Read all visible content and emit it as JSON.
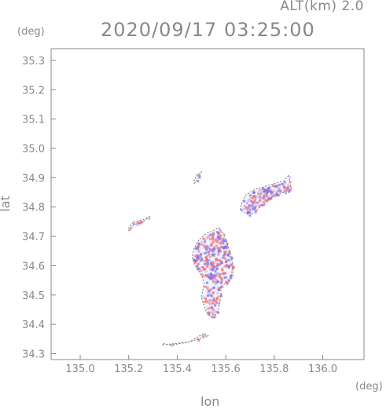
{
  "header": {
    "alt_label": "ALT(km)  2.0",
    "time_label": "2020/09/17 03:25:00"
  },
  "axes": {
    "y_unit": "(deg)",
    "x_unit": "(deg)",
    "x_title": "lon",
    "y_title": "lat",
    "x_ticks": [
      "135.0",
      "135.2",
      "135.4",
      "135.6",
      "135.8",
      "136.0"
    ],
    "y_ticks": [
      "34.3",
      "34.4",
      "34.5",
      "34.6",
      "34.7",
      "34.8",
      "34.9",
      "35.0",
      "35.1",
      "35.2",
      "35.3"
    ]
  },
  "map_data": {
    "lon_range": [
      134.88,
      136.17
    ],
    "lat_range": [
      34.28,
      35.34
    ],
    "colors": {
      "positive": "#f07070",
      "negative": "#7070f0",
      "outline": "#666666"
    },
    "regions": [
      {
        "name": "",
        "lon": [
          135.58,
          135.62,
          135.63,
          135.62,
          135.6,
          135.59,
          135.57,
          135.55,
          135.52,
          135.49,
          135.47,
          135.46,
          135.47,
          135.48,
          135.5,
          135.51,
          135.5,
          135.52,
          135.55,
          135.57,
          135.58
        ],
        "lat": [
          34.53,
          34.55,
          34.6,
          34.64,
          34.69,
          34.71,
          34.73,
          34.72,
          34.71,
          34.69,
          34.66,
          34.63,
          34.61,
          34.59,
          34.57,
          34.54,
          34.49,
          34.44,
          34.42,
          34.45,
          34.5
        ]
      },
      {
        "name": "",
        "lon": [
          135.66,
          135.68,
          135.72,
          135.76,
          135.8,
          135.84,
          135.86,
          135.87,
          135.84,
          135.8,
          135.77,
          135.73,
          135.7,
          135.68,
          135.66
        ],
        "lat": [
          34.8,
          34.84,
          34.86,
          34.87,
          34.88,
          34.89,
          34.91,
          34.86,
          34.85,
          34.84,
          34.82,
          34.79,
          34.77,
          34.78,
          34.79
        ]
      },
      {
        "name": "",
        "lon": [
          135.22,
          135.27,
          135.29,
          135.26,
          135.22,
          135.2,
          135.2,
          135.22
        ],
        "lat": [
          34.75,
          34.76,
          34.77,
          34.75,
          34.74,
          34.72,
          34.73,
          34.75
        ]
      },
      {
        "name": "",
        "lon": [
          135.34,
          135.39,
          135.45,
          135.49,
          135.53,
          135.51,
          135.45,
          135.38,
          135.34
        ],
        "lat": [
          34.33,
          34.335,
          34.34,
          34.35,
          34.36,
          34.37,
          34.34,
          34.33,
          34.335
        ]
      },
      {
        "name": "",
        "lon": [
          135.47,
          135.49,
          135.5,
          135.48,
          135.47
        ],
        "lat": [
          34.88,
          34.9,
          34.92,
          34.91,
          34.89
        ]
      }
    ]
  }
}
